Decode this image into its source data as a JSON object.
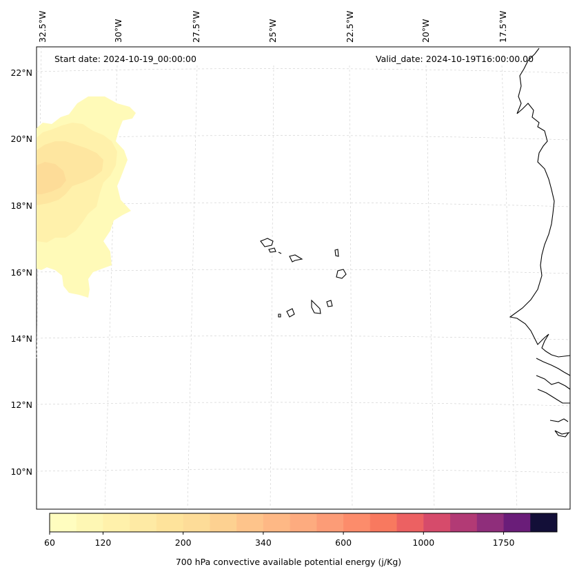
{
  "map": {
    "start_date": "Start date: 2024-10-19_00:00:00",
    "valid_date": "Valid_date: 2024-10-19T16:00:00.00",
    "lon_labels": [
      "32.5°W",
      "30°W",
      "27.5°W",
      "25°W",
      "22.5°W",
      "20°W",
      "17.5°W"
    ],
    "lat_labels": [
      "22°N",
      "20°N",
      "18°N",
      "16°N",
      "14°N",
      "12°N",
      "10°N"
    ]
  },
  "colorbar": {
    "title": "700 hPa convective available potential energy (j/Kg)",
    "tick_labels": [
      "60",
      "120",
      "200",
      "340",
      "600",
      "1000",
      "1750"
    ],
    "levels": [
      60,
      90,
      120,
      150,
      180,
      200,
      240,
      280,
      340,
      400,
      480,
      600,
      700,
      850,
      1000,
      1200,
      1500,
      1750,
      2100,
      2500
    ],
    "colors": [
      "#fffdbf",
      "#fef7b4",
      "#fff1ab",
      "#feeaa4",
      "#fee39b",
      "#fddc98",
      "#fdd191",
      "#fec48b",
      "#feb885",
      "#fdab7f",
      "#fc9c77",
      "#fc8c6b",
      "#f8795f",
      "#ec6162",
      "#d64b6b",
      "#b23a75",
      "#8f2e7b",
      "#6a1d79",
      "#130f38"
    ]
  }
}
